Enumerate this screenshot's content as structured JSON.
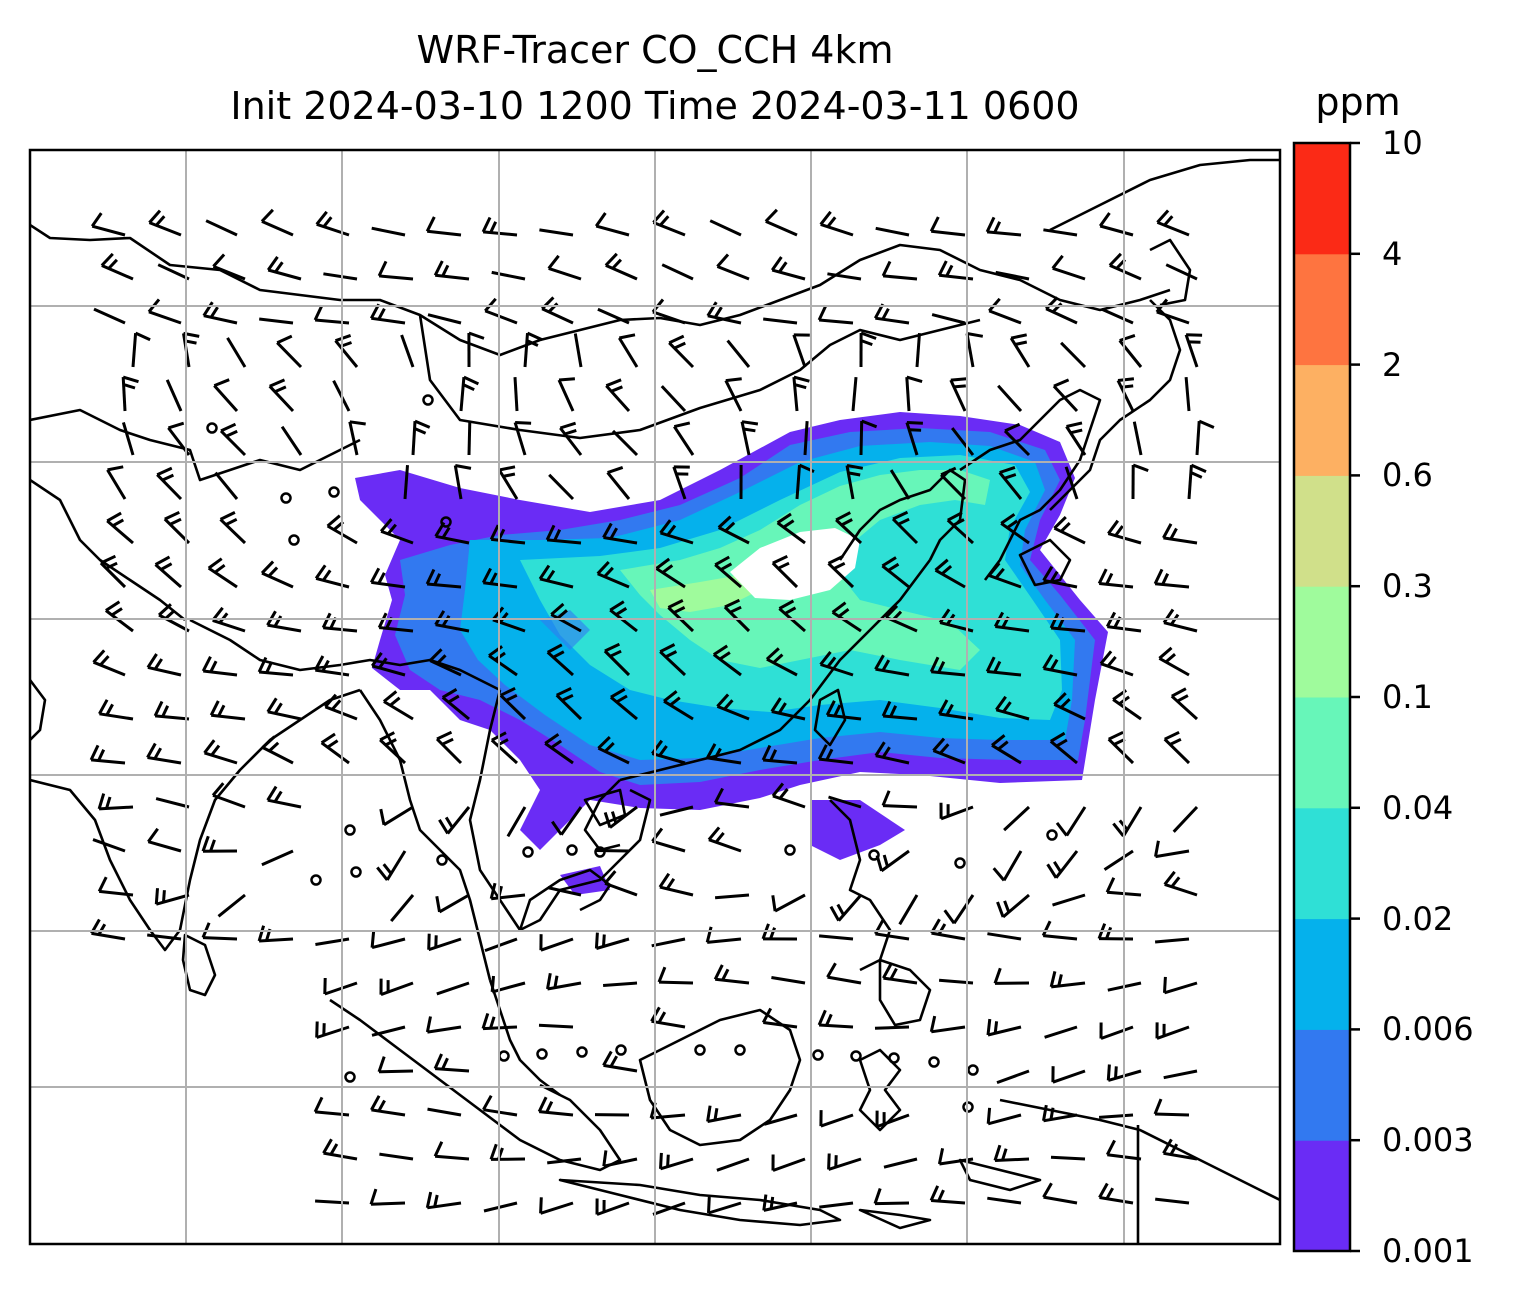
{
  "title": {
    "line1": "WRF-Tracer CO_CCH 4km",
    "line2": "Init 2024-03-10 1200 Time 2024-03-11 0600"
  },
  "colorbar": {
    "unit": "ppm",
    "levels": [
      "0.001",
      "0.003",
      "0.006",
      "0.02",
      "0.04",
      "0.1",
      "0.3",
      "0.6",
      "2",
      "4",
      "10"
    ],
    "colors": [
      "#6a2cf5",
      "#3279f0",
      "#05b1ec",
      "#2fe0d6",
      "#67f6b9",
      "#9ffb9c",
      "#d0e08a",
      "#fdb062",
      "#fe7440",
      "#fb2a16"
    ]
  },
  "map": {
    "grid": true,
    "wind_barbs": true,
    "plume_color_levels": [
      "#6a2cf5",
      "#3279f0",
      "#05b1ec",
      "#2fe0d6",
      "#67f6b9",
      "#9ffb9c"
    ]
  }
}
